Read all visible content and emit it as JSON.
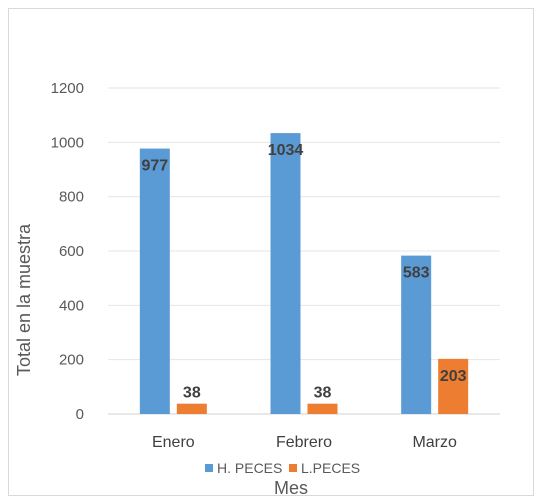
{
  "chart_data": {
    "type": "bar",
    "title": "",
    "xlabel": "Mes",
    "ylabel": "Total en la muestra",
    "categories": [
      "Enero",
      "Febrero",
      "Marzo"
    ],
    "series": [
      {
        "name": "H. PECES",
        "values": [
          977,
          1034,
          583
        ],
        "color": "#5b9bd5"
      },
      {
        "name": "L.PECES",
        "values": [
          38,
          38,
          203
        ],
        "color": "#ed7d31"
      }
    ],
    "ylim": [
      0,
      1200
    ],
    "yticks": [
      0,
      200,
      400,
      600,
      800,
      1000,
      1200
    ],
    "grid": true,
    "legend": "bottom"
  }
}
